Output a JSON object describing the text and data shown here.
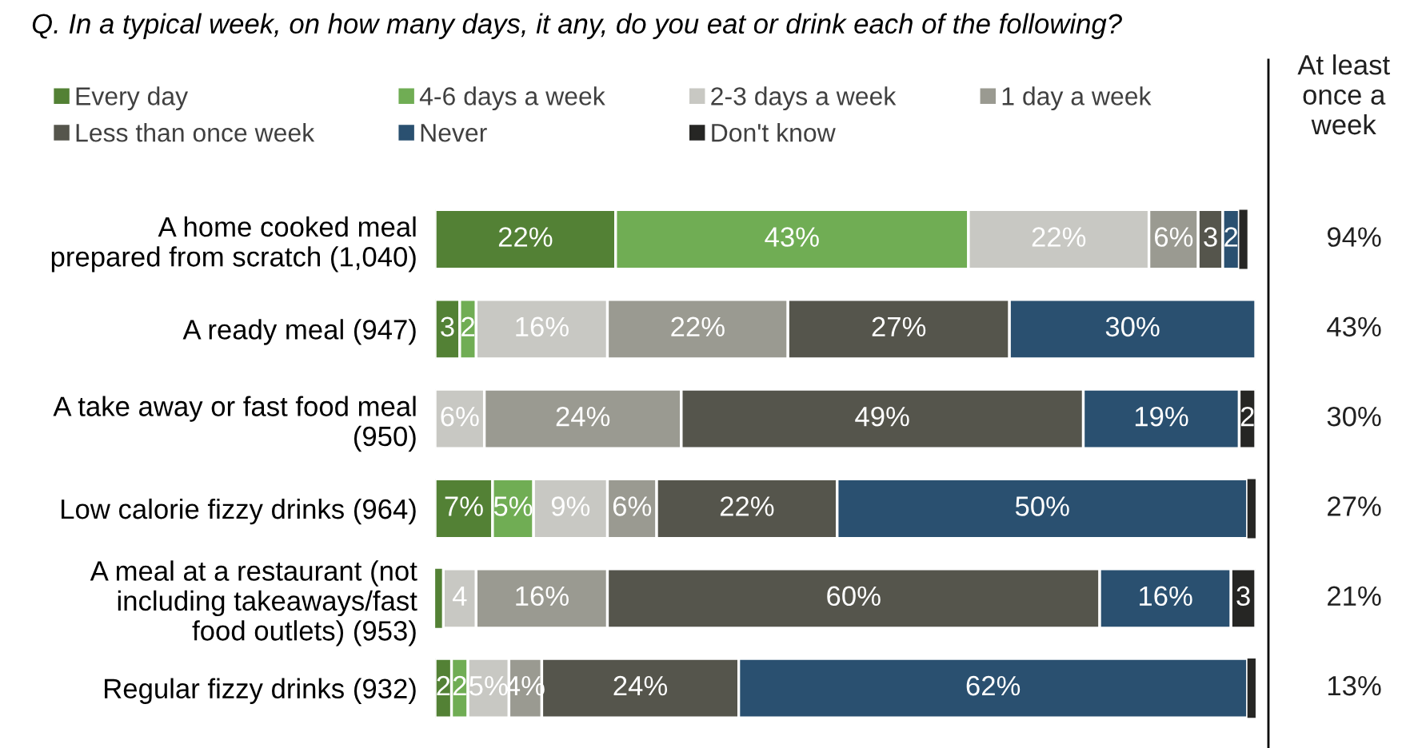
{
  "chart_data": {
    "type": "bar",
    "orientation": "horizontal",
    "stacked": true,
    "title": "Q. In a typical week, on how many days, it any, do you eat or drink each of the following?",
    "categories": [
      "A home cooked meal\nprepared from scratch (1,040)",
      "A ready meal (947)",
      "A take away or fast food meal\n(950)",
      "Low calorie fizzy drinks (964)",
      "A meal at a restaurant (not\nincluding takeaways/fast\nfood outlets) (953)",
      "Regular fizzy drinks (932)"
    ],
    "series": [
      {
        "name": "Every day",
        "color": "#538135",
        "values": [
          22,
          3,
          0,
          7,
          1,
          2
        ],
        "value_labels": [
          "22%",
          "3",
          null,
          "7%",
          null,
          "2"
        ]
      },
      {
        "name": "4-6 days a week",
        "color": "#70ad54",
        "values": [
          43,
          2,
          0,
          5,
          0,
          2
        ],
        "value_labels": [
          "43%",
          "2",
          null,
          "5%",
          null,
          "2"
        ]
      },
      {
        "name": "2-3 days a week",
        "color": "#c8c8c3",
        "values": [
          22,
          16,
          6,
          9,
          4,
          5
        ],
        "value_labels": [
          "22%",
          "16%",
          "6%",
          "9%",
          "4",
          "5%"
        ]
      },
      {
        "name": "1 day a week",
        "color": "#9a9a91",
        "values": [
          6,
          22,
          24,
          6,
          16,
          4
        ],
        "value_labels": [
          "6%",
          "22%",
          "24%",
          "6%",
          "16%",
          "4%"
        ]
      },
      {
        "name": "Less than once week",
        "color": "#55554c",
        "values": [
          3,
          27,
          49,
          22,
          60,
          24
        ],
        "value_labels": [
          "3",
          "27%",
          "49%",
          "22%",
          "60%",
          "24%"
        ]
      },
      {
        "name": "Never",
        "color": "#2a5070",
        "values": [
          2,
          30,
          19,
          50,
          16,
          62
        ],
        "value_labels": [
          "2",
          "30%",
          "19%",
          "50%",
          "16%",
          "62%"
        ]
      },
      {
        "name": "Don't know",
        "color": "#262624",
        "values": [
          1,
          0,
          2,
          1,
          3,
          1
        ],
        "value_labels": [
          null,
          null,
          "2",
          null,
          "3",
          null
        ]
      }
    ],
    "xlim": [
      0,
      100
    ],
    "tick_labels": "y",
    "grid": false,
    "legend": "top",
    "annotations": [
      "At least\nonce a\nweek",
      "94%",
      "43%",
      "30%",
      "27%",
      "21%",
      "13%"
    ]
  }
}
